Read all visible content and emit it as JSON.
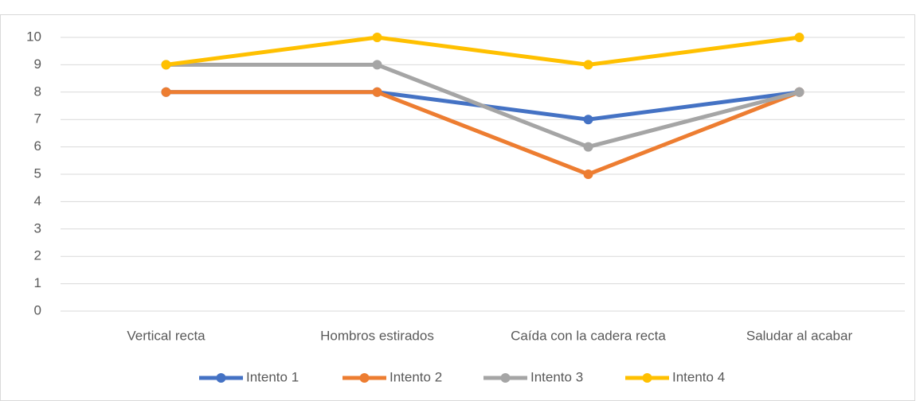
{
  "chart_data": {
    "type": "line",
    "categories": [
      "Vertical recta",
      "Hombros estirados",
      "Caída con la cadera recta",
      "Saludar al acabar"
    ],
    "series": [
      {
        "name": "Intento 1",
        "color": "#4472c4",
        "values": [
          8,
          8,
          7,
          8
        ]
      },
      {
        "name": "Intento 2",
        "color": "#ed7d31",
        "values": [
          8,
          8,
          5,
          8
        ]
      },
      {
        "name": "Intento 3",
        "color": "#a5a5a5",
        "values": [
          9,
          9,
          6,
          8
        ]
      },
      {
        "name": "Intento 4",
        "color": "#ffc000",
        "values": [
          9,
          10,
          9,
          10
        ]
      }
    ],
    "ylim": [
      0,
      10
    ],
    "yticks": [
      0,
      1,
      2,
      3,
      4,
      5,
      6,
      7,
      8,
      9,
      10
    ],
    "grid": true,
    "legend": "bottom"
  }
}
